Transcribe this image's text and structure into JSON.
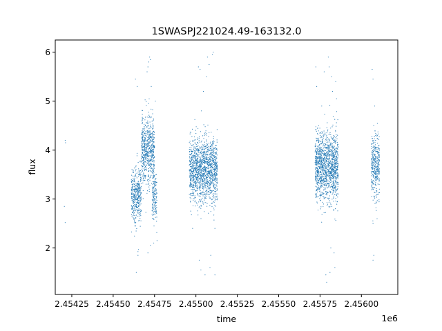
{
  "chart_data": {
    "type": "scatter",
    "title": "1SWASPJ221024.49-163132.0",
    "xlabel": "time",
    "ylabel": "flux",
    "x_offset_label": "1e6",
    "xlim": [
      2.45415,
      2.45622
    ],
    "ylim": [
      1.05,
      6.25
    ],
    "x_ticks": [
      2.45425,
      2.4545,
      2.45475,
      2.455,
      2.45525,
      2.4555,
      2.45575,
      2.456
    ],
    "x_tick_labels": [
      "2.45425",
      "2.45450",
      "2.45475",
      "2.45500",
      "2.45525",
      "2.45550",
      "2.45575",
      "2.45600"
    ],
    "y_ticks": [
      2,
      3,
      4,
      5,
      6
    ],
    "y_tick_labels": [
      "2",
      "3",
      "4",
      "5",
      "6"
    ],
    "grid": false,
    "legend": "none",
    "point_color": "#1f77b4",
    "clusters": [
      {
        "x_range": [
          2.45461,
          2.45467
        ],
        "center": 3.1,
        "spread": 0.28,
        "count": 420
      },
      {
        "x_range": [
          2.45467,
          2.45475
        ],
        "center": 4.0,
        "spread": 0.33,
        "count": 650
      },
      {
        "x_range": [
          2.454735,
          2.454765
        ],
        "center": 3.05,
        "spread": 0.28,
        "count": 160
      },
      {
        "x_range": [
          2.45496,
          2.45513
        ],
        "center": 3.6,
        "spread": 0.32,
        "count": 1500
      },
      {
        "x_range": [
          2.45572,
          2.45586
        ],
        "center": 3.65,
        "spread": 0.35,
        "count": 1400
      },
      {
        "x_range": [
          2.45606,
          2.45611
        ],
        "center": 3.65,
        "spread": 0.32,
        "count": 380
      }
    ],
    "points": [
      {
        "x": 2.45421,
        "y": 4.2
      },
      {
        "x": 2.454212,
        "y": 4.15
      },
      {
        "x": 2.454205,
        "y": 2.85
      },
      {
        "x": 2.45421,
        "y": 2.52
      },
      {
        "x": 2.454635,
        "y": 5.45
      },
      {
        "x": 2.45464,
        "y": 1.5
      },
      {
        "x": 2.454645,
        "y": 5.3
      },
      {
        "x": 2.45465,
        "y": 1.85
      },
      {
        "x": 2.454705,
        "y": 5.6
      },
      {
        "x": 2.45471,
        "y": 5.7
      },
      {
        "x": 2.454715,
        "y": 5.8
      },
      {
        "x": 2.45472,
        "y": 5.9
      },
      {
        "x": 2.454725,
        "y": 5.85
      },
      {
        "x": 2.45471,
        "y": 1.9
      },
      {
        "x": 2.454725,
        "y": 2.05
      },
      {
        "x": 2.45473,
        "y": 5.3
      },
      {
        "x": 2.454745,
        "y": 2.1
      },
      {
        "x": 2.454755,
        "y": 5.0
      },
      {
        "x": 2.454765,
        "y": 2.15
      },
      {
        "x": 2.455015,
        "y": 5.7
      },
      {
        "x": 2.455025,
        "y": 5.65
      },
      {
        "x": 2.45502,
        "y": 1.75
      },
      {
        "x": 2.45503,
        "y": 1.55
      },
      {
        "x": 2.455055,
        "y": 1.45
      },
      {
        "x": 2.455045,
        "y": 5.2
      },
      {
        "x": 2.455065,
        "y": 5.5
      },
      {
        "x": 2.45507,
        "y": 5.9
      },
      {
        "x": 2.45508,
        "y": 5.75
      },
      {
        "x": 2.455085,
        "y": 1.6
      },
      {
        "x": 2.4551,
        "y": 5.95
      },
      {
        "x": 2.455105,
        "y": 6.0
      },
      {
        "x": 2.455115,
        "y": 1.45
      },
      {
        "x": 2.455115,
        "y": 2.4
      },
      {
        "x": 2.45509,
        "y": 1.85
      },
      {
        "x": 2.45498,
        "y": 2.4
      },
      {
        "x": 2.455725,
        "y": 5.7
      },
      {
        "x": 2.45573,
        "y": 5.3
      },
      {
        "x": 2.455775,
        "y": 5.6
      },
      {
        "x": 2.455785,
        "y": 1.45
      },
      {
        "x": 2.45579,
        "y": 1.3
      },
      {
        "x": 2.4558,
        "y": 5.9
      },
      {
        "x": 2.455805,
        "y": 5.7
      },
      {
        "x": 2.45581,
        "y": 1.5
      },
      {
        "x": 2.455815,
        "y": 2.0
      },
      {
        "x": 2.45582,
        "y": 5.5
      },
      {
        "x": 2.455825,
        "y": 5.2
      },
      {
        "x": 2.455835,
        "y": 1.9
      },
      {
        "x": 2.45584,
        "y": 1.6
      },
      {
        "x": 2.455845,
        "y": 5.4
      },
      {
        "x": 2.45585,
        "y": 5.05
      },
      {
        "x": 2.45576,
        "y": 4.9
      },
      {
        "x": 2.456065,
        "y": 5.65
      },
      {
        "x": 2.45607,
        "y": 5.45
      },
      {
        "x": 2.45607,
        "y": 1.75
      },
      {
        "x": 2.456075,
        "y": 1.85
      },
      {
        "x": 2.45607,
        "y": 2.5
      },
      {
        "x": 2.45608,
        "y": 4.9
      }
    ]
  }
}
